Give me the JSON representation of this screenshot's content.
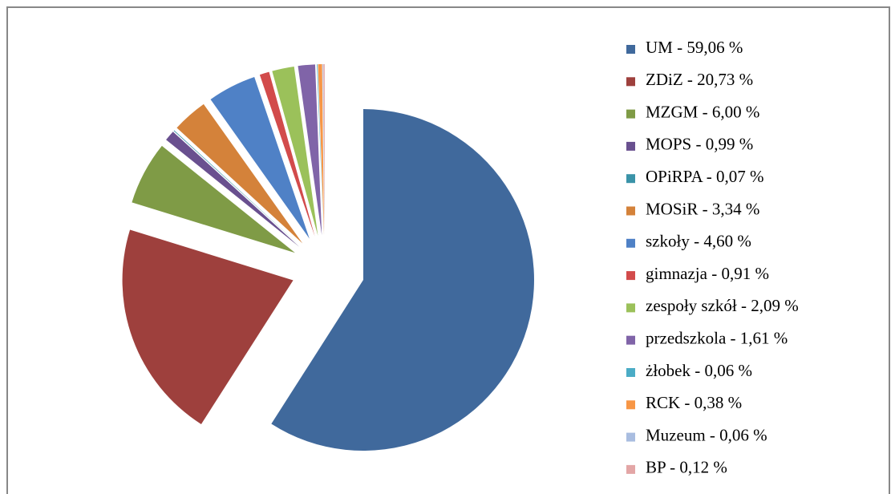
{
  "chart_data": {
    "type": "pie",
    "categories": [
      "UM - 59,06 %",
      "ZDiZ - 20,73 %",
      "MZGM - 6,00 %",
      "MOPS  - 0,99 %",
      "OPiRPA - 0,07 %",
      "MOSiR - 3,34 %",
      "szkoły - 4,60 %",
      "gimnazja - 0,91 %",
      "zespoły szkół - 2,09 %",
      "przedszkola - 1,61 %",
      "żłobek - 0,06 %",
      "RCK - 0,38 %",
      "Muzeum - 0,06 %",
      "BP - 0,12 %"
    ],
    "values": [
      59.06,
      20.73,
      6.0,
      0.99,
      0.07,
      3.34,
      4.6,
      0.91,
      2.09,
      1.61,
      0.06,
      0.38,
      0.06,
      0.12
    ],
    "colors": [
      "#40699c",
      "#9e403d",
      "#7f9b46",
      "#69508f",
      "#3a93a8",
      "#d4823a",
      "#4f81c6",
      "#d24b4b",
      "#9bc15a",
      "#8064a8",
      "#4bacc6",
      "#f79646",
      "#a9bde0",
      "#e3a6a6"
    ],
    "legend": "right"
  }
}
